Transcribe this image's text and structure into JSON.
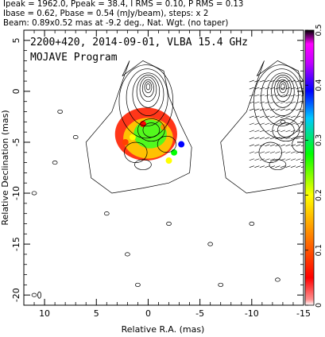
{
  "header": {
    "line1": "Ipeak = 1962.0, Ppeak = 38.4, I RMS = 0.10, P RMS = 0.13",
    "line2": "Ibase = 0.62, Pbase = 0.54 (mJy/beam), steps: x 2",
    "line3": "Beam: 0.89x0.52 mas at -9.2 deg., Nat. Wgt. (no taper)"
  },
  "chart_data": {
    "type": "heatmap",
    "title": "2200+420, 2014-09-01, VLBA 15.4 GHz",
    "subtitle": "MOJAVE Program",
    "xlabel": "Relative R.A. (mas)",
    "ylabel": "Relative Declination (mas)",
    "xlim": [
      12,
      -15
    ],
    "ylim": [
      -21,
      6
    ],
    "x_ticks": [
      10,
      5,
      0,
      -5,
      -10,
      -15
    ],
    "x_tick_labels": [
      "10",
      "5",
      "0",
      "-5",
      "-10",
      "-15"
    ],
    "y_ticks": [
      5,
      0,
      -5,
      -10,
      -15,
      -20
    ],
    "y_tick_labels": [
      "5",
      "0",
      "-5",
      "-10",
      "-15",
      "-20"
    ],
    "colorbar": {
      "ticks": [
        0,
        0.1,
        0.2,
        0.3,
        0.4,
        0.5
      ],
      "tick_labels": [
        "0",
        "0.1",
        "0.2",
        "0.3",
        "0.4",
        "0.5"
      ],
      "range": [
        0,
        0.5
      ],
      "colormap": [
        "#ffffff",
        "#ff0000",
        "#ff8000",
        "#ffff00",
        "#00ff00",
        "#00c0ff",
        "#0000ff",
        "#c000ff",
        "#ff00ff",
        "#000000"
      ]
    },
    "left_panel": {
      "core": {
        "x": 0,
        "y": 0
      },
      "contour_levels_mjy": [
        0.62,
        1.24,
        2.48,
        4.96,
        9.92,
        19.8,
        39.7,
        79.4,
        159,
        318,
        635,
        1270
      ],
      "polarization_blobs": [
        {
          "x": 0.5,
          "y": -3.2,
          "level": 0.05
        },
        {
          "x": -1.5,
          "y": -3.5,
          "level": 0.15
        },
        {
          "x": 1.5,
          "y": -4.5,
          "level": 0.2
        },
        {
          "x": -2.5,
          "y": -6.0,
          "level": 0.3
        },
        {
          "x": -3.2,
          "y": -5.2,
          "level": 0.42
        },
        {
          "x": 2.2,
          "y": -5.0,
          "level": 0.12
        },
        {
          "x": -2.0,
          "y": -6.8,
          "level": 0.22
        }
      ]
    },
    "right_panel": {
      "x_offset": -13,
      "description": "total intensity contours with polarization vectors"
    }
  }
}
